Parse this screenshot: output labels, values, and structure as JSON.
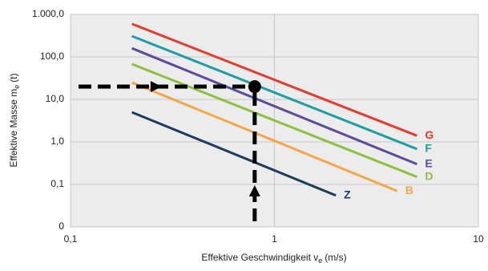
{
  "chart_data": {
    "type": "line",
    "xlabel": {
      "text": "Effektive Geschwindigkeit v",
      "sub": "e",
      "unit": "(m/s)"
    },
    "ylabel": {
      "text": "Effektive Masse m",
      "sub": "e",
      "unit": "(t)"
    },
    "log_x": true,
    "log_y": true,
    "grid": true,
    "xlim": [
      0.1,
      10
    ],
    "xticks": [
      {
        "value": 0.1,
        "label": "0,1"
      },
      1,
      10
    ],
    "ylim": [
      0.01,
      1000
    ],
    "yticks": [
      {
        "value": 0.01,
        "label": "0"
      },
      {
        "value": 0.1,
        "label": "0,1"
      },
      {
        "value": 1,
        "label": "1,0"
      },
      {
        "value": 10,
        "label": "10,0"
      },
      {
        "value": 100,
        "label": "100,0"
      },
      {
        "value": 1000,
        "label": "1.000,0"
      }
    ],
    "series": [
      {
        "name": "G",
        "color": "#e53a2c",
        "x": [
          0.2,
          5
        ],
        "values": [
          600,
          1.4
        ]
      },
      {
        "name": "F",
        "color": "#1e9da2",
        "x": [
          0.2,
          5
        ],
        "values": [
          310,
          0.68
        ]
      },
      {
        "name": "E",
        "color": "#5c4b9d",
        "x": [
          0.2,
          5
        ],
        "values": [
          160,
          0.3
        ]
      },
      {
        "name": "D",
        "color": "#8dc03f",
        "x": [
          0.2,
          5
        ],
        "values": [
          68,
          0.15
        ]
      },
      {
        "name": "B",
        "color": "#f6a645",
        "x": [
          0.2,
          4
        ],
        "values": [
          25,
          0.07
        ]
      },
      {
        "name": "Z",
        "color": "#1c3b5e",
        "x": [
          0.2,
          2
        ],
        "values": [
          5,
          0.055
        ]
      }
    ],
    "example_point": {
      "x": 0.8,
      "y": 20
    }
  }
}
